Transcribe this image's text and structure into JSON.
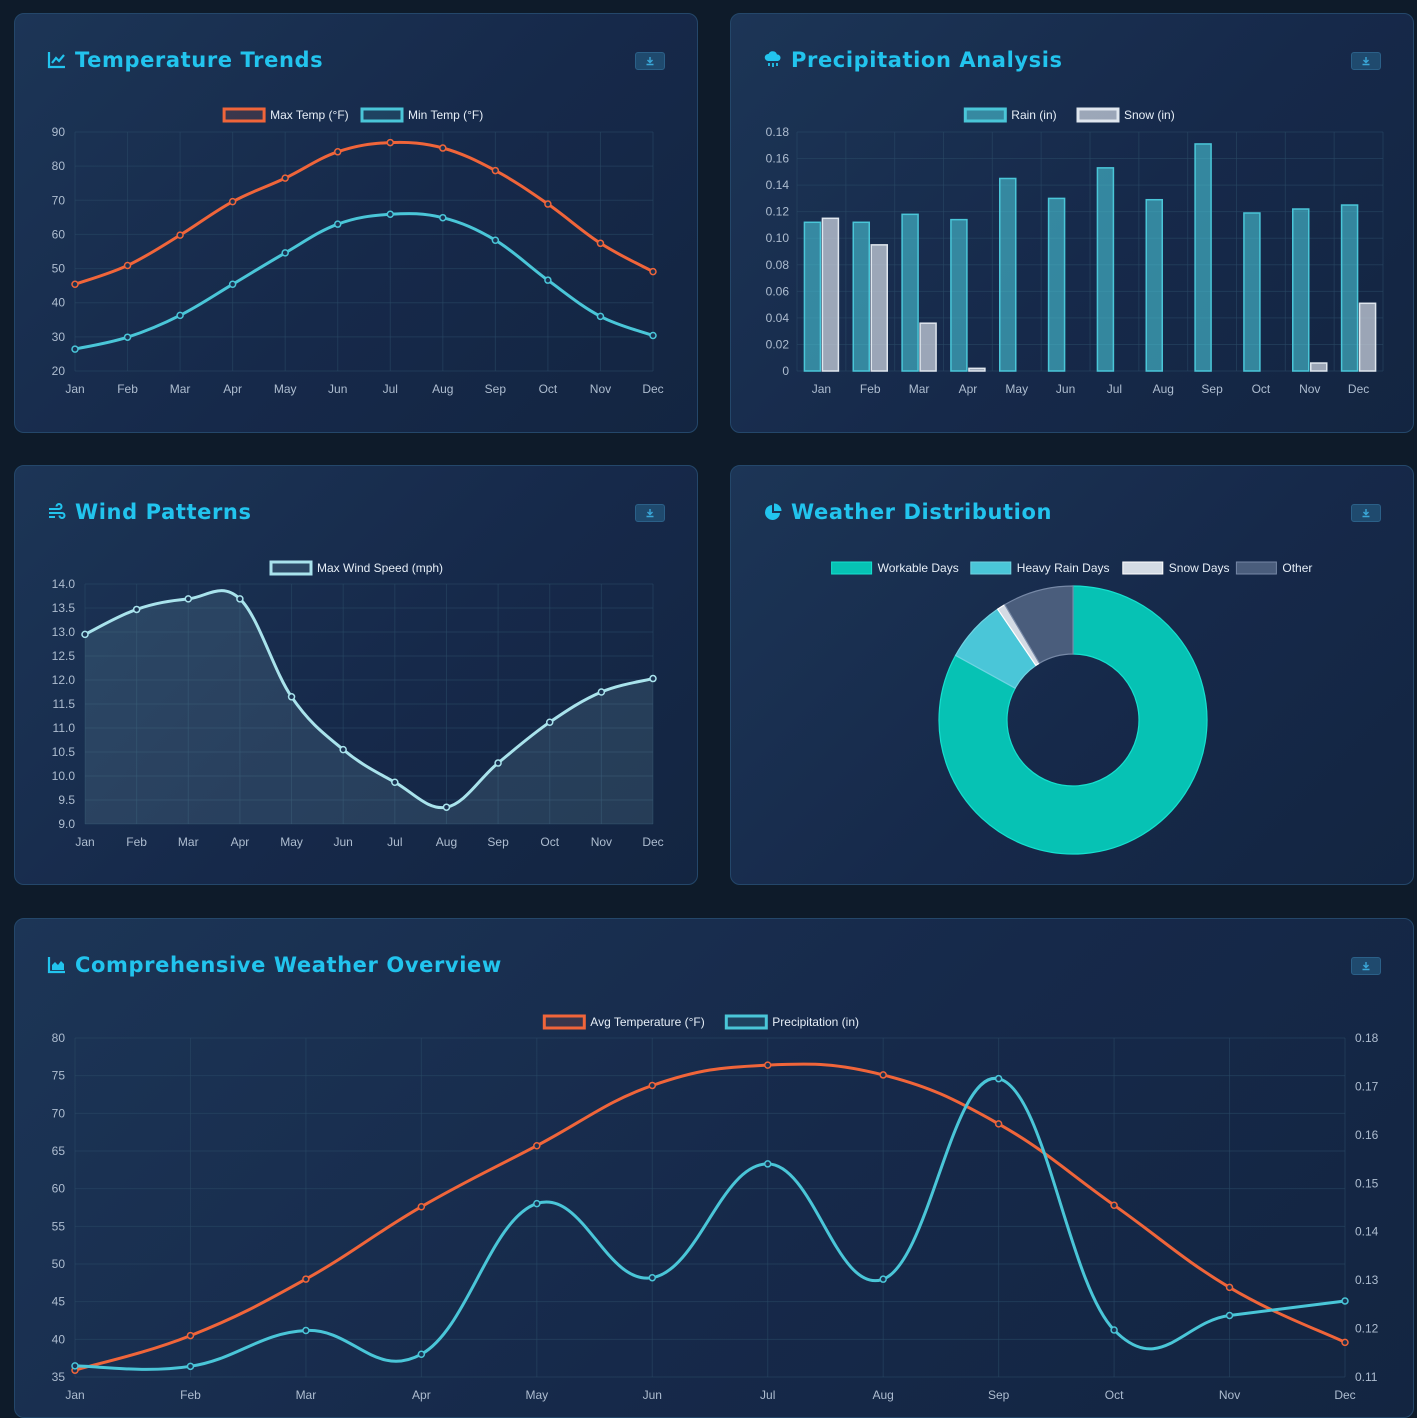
{
  "months": [
    "Jan",
    "Feb",
    "Mar",
    "Apr",
    "May",
    "Jun",
    "Jul",
    "Aug",
    "Sep",
    "Oct",
    "Nov",
    "Dec"
  ],
  "colors": {
    "orange": "#f0653a",
    "cyan": "#4ac6d8",
    "snow": "#a9b5c4",
    "wind": "#a9e3ec",
    "teal": "#06c2b4",
    "other": "#4a5d7c",
    "title": "#22c4ee"
  },
  "cards": {
    "temperature": {
      "title": "Temperature Trends",
      "icon": "chart-line-icon"
    },
    "precipitation": {
      "title": "Precipitation Analysis",
      "icon": "cloud-rain-icon"
    },
    "wind": {
      "title": "Wind Patterns",
      "icon": "wind-icon"
    },
    "distribution": {
      "title": "Weather Distribution",
      "icon": "chart-pie-icon"
    },
    "overview": {
      "title": "Comprehensive Weather Overview",
      "icon": "chart-area-icon"
    }
  },
  "chart_data": [
    {
      "id": "temperature",
      "type": "line",
      "categories": [
        "Jan",
        "Feb",
        "Mar",
        "Apr",
        "May",
        "Jun",
        "Jul",
        "Aug",
        "Sep",
        "Oct",
        "Nov",
        "Dec"
      ],
      "series": [
        {
          "name": "Max Temp (°F)",
          "values": [
            45.4,
            50.9,
            59.8,
            69.6,
            76.5,
            84.2,
            86.9,
            85.3,
            78.7,
            68.9,
            57.4,
            49.1
          ]
        },
        {
          "name": "Min Temp (°F)",
          "values": [
            26.4,
            29.9,
            36.3,
            45.4,
            54.6,
            63.0,
            65.9,
            64.9,
            58.3,
            46.6,
            36.0,
            30.4
          ]
        }
      ],
      "ylim": [
        20,
        90
      ],
      "yticks": [
        20,
        30,
        40,
        50,
        60,
        70,
        80,
        90
      ],
      "grid": true,
      "legend": "top-center"
    },
    {
      "id": "precipitation",
      "type": "bar",
      "categories": [
        "Jan",
        "Feb",
        "Mar",
        "Apr",
        "May",
        "Jun",
        "Jul",
        "Aug",
        "Sep",
        "Oct",
        "Nov",
        "Dec"
      ],
      "series": [
        {
          "name": "Rain (in)",
          "values": [
            0.112,
            0.112,
            0.118,
            0.114,
            0.145,
            0.13,
            0.153,
            0.129,
            0.171,
            0.119,
            0.122,
            0.125
          ]
        },
        {
          "name": "Snow (in)",
          "values": [
            0.115,
            0.095,
            0.036,
            0.002,
            0,
            0,
            0,
            0,
            0,
            0,
            0.006,
            0.051
          ]
        }
      ],
      "ylim": [
        0,
        0.18
      ],
      "yticks": [
        "0",
        "0.02",
        "0.04",
        "0.06",
        "0.08",
        "0.10",
        "0.12",
        "0.14",
        "0.16",
        "0.18"
      ],
      "grid": true,
      "legend": "top-center"
    },
    {
      "id": "wind",
      "type": "area",
      "categories": [
        "Jan",
        "Feb",
        "Mar",
        "Apr",
        "May",
        "Jun",
        "Jul",
        "Aug",
        "Sep",
        "Oct",
        "Nov",
        "Dec"
      ],
      "series": [
        {
          "name": "Max Wind Speed (mph)",
          "values": [
            12.95,
            13.47,
            13.69,
            13.69,
            11.65,
            10.55,
            9.87,
            9.35,
            10.27,
            11.12,
            11.75,
            12.03
          ]
        }
      ],
      "ylim": [
        9.0,
        14.0
      ],
      "yticks": [
        "9.0",
        "9.5",
        "10.0",
        "10.5",
        "11.0",
        "11.5",
        "12.0",
        "12.5",
        "13.0",
        "13.5",
        "14.0"
      ],
      "grid": true,
      "legend": "top-center"
    },
    {
      "id": "distribution",
      "type": "pie",
      "labels": [
        "Workable Days",
        "Heavy Rain Days",
        "Snow Days",
        "Other"
      ],
      "values": [
        83,
        7.5,
        1,
        8.5
      ],
      "legend": "top-center"
    },
    {
      "id": "overview",
      "type": "line",
      "categories": [
        "Jan",
        "Feb",
        "Mar",
        "Apr",
        "May",
        "Jun",
        "Jul",
        "Aug",
        "Sep",
        "Oct",
        "Nov",
        "Dec"
      ],
      "series": [
        {
          "name": "Avg Temperature (°F)",
          "axis": "left",
          "values": [
            35.9,
            40.5,
            48.0,
            57.6,
            65.7,
            73.7,
            76.4,
            75.1,
            68.6,
            57.8,
            46.9,
            39.6
          ]
        },
        {
          "name": "Precipitation (in)",
          "axis": "right",
          "values": [
            0.1123,
            0.1122,
            0.1196,
            0.1147,
            0.1458,
            0.1305,
            0.154,
            0.1302,
            0.1716,
            0.1197,
            0.1227,
            0.1257
          ]
        }
      ],
      "ylim_left": [
        35,
        80
      ],
      "yticks_left": [
        35,
        40,
        45,
        50,
        55,
        60,
        65,
        70,
        75,
        80
      ],
      "ylim_right": [
        0.11,
        0.18
      ],
      "yticks_right": [
        "0.11",
        "0.12",
        "0.13",
        "0.14",
        "0.15",
        "0.16",
        "0.17",
        "0.18"
      ],
      "grid": true,
      "legend": "top-center"
    }
  ]
}
